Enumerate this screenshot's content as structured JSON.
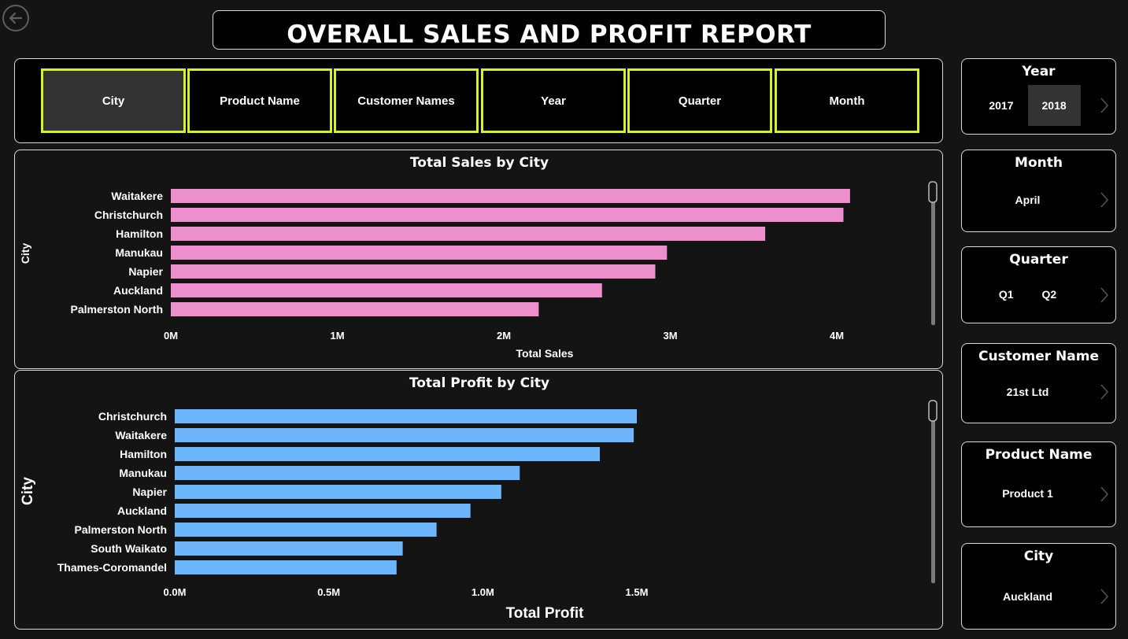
{
  "page": {
    "title": "OVERALL SALES AND PROFIT REPORT"
  },
  "nav": {
    "buttons": [
      "City",
      "Product Name",
      "Customer Names",
      "Year",
      "Quarter",
      "Month"
    ],
    "active": "City"
  },
  "slicers": {
    "year": {
      "title": "Year",
      "options": [
        "2017",
        "2018"
      ],
      "selected": "2018"
    },
    "month": {
      "title": "Month",
      "value": "April"
    },
    "quarter": {
      "title": "Quarter",
      "options": [
        "Q1",
        "Q2"
      ]
    },
    "customer": {
      "title": "Customer Name",
      "value": "21st Ltd"
    },
    "product": {
      "title": "Product Name",
      "value": "Product 1"
    },
    "city": {
      "title": "City",
      "value": "Auckland"
    }
  },
  "chart_data": [
    {
      "type": "bar",
      "orientation": "horizontal",
      "title": "Total Sales by City",
      "xlabel": "Total Sales",
      "ylabel": "City",
      "color": "#ee8fcd",
      "categories": [
        "Waitakere",
        "Christchurch",
        "Hamilton",
        "Manukau",
        "Napier",
        "Auckland",
        "Palmerston North"
      ],
      "values": [
        4080000,
        4040000,
        3570000,
        2980000,
        2910000,
        2590000,
        2210000
      ],
      "xlim": [
        0,
        4000000
      ],
      "xticks": [
        0,
        1000000,
        2000000,
        3000000,
        4000000
      ],
      "xtick_labels": [
        "0M",
        "1M",
        "2M",
        "3M",
        "4M"
      ]
    },
    {
      "type": "bar",
      "orientation": "horizontal",
      "title": "Total Profit by City",
      "xlabel": "Total Profit",
      "ylabel": "City",
      "color": "#6db6fb",
      "categories": [
        "Christchurch",
        "Waitakere",
        "Hamilton",
        "Manukau",
        "Napier",
        "Auckland",
        "Palmerston North",
        "South Waikato",
        "Thames-Coromandel"
      ],
      "values": [
        1500000,
        1490000,
        1380000,
        1120000,
        1060000,
        960000,
        850000,
        740000,
        720000
      ],
      "xlim": [
        0,
        1500000
      ],
      "xticks": [
        0,
        500000,
        1000000,
        1500000
      ],
      "xtick_labels": [
        "0.0M",
        "0.5M",
        "1.0M",
        "1.5M"
      ]
    }
  ]
}
